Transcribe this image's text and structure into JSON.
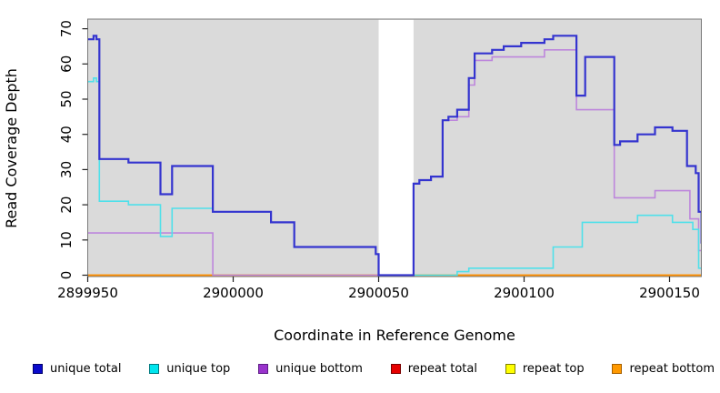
{
  "chart_data": {
    "type": "line",
    "subtype": "step",
    "title": "",
    "xlabel": "Coordinate in Reference Genome",
    "ylabel": "Read Coverage Depth",
    "xlim": [
      2899950,
      2900161
    ],
    "ylim": [
      0,
      73
    ],
    "x_ticks": [
      2899950,
      2900000,
      2900050,
      2900100,
      2900150
    ],
    "y_ticks": [
      0,
      10,
      20,
      30,
      40,
      50,
      60,
      70
    ],
    "grid": false,
    "plot_bg": "#DADADA",
    "gap_region": {
      "from": 2900050,
      "to": 2900062,
      "color": "#FFFFFF"
    },
    "legend_position": "bottom",
    "series": [
      {
        "name": "unique total",
        "line_color": "#3434CF",
        "line_width": 2.2,
        "legend_fill": "#0A0ACC",
        "legend_border": "#00006B",
        "steps": [
          [
            2899950,
            67
          ],
          [
            2899952,
            68
          ],
          [
            2899953,
            67
          ],
          [
            2899954,
            33
          ],
          [
            2899964,
            32
          ],
          [
            2899975,
            23
          ],
          [
            2899979,
            31
          ],
          [
            2899993,
            18
          ],
          [
            2900013,
            15
          ],
          [
            2900021,
            8
          ],
          [
            2900049,
            6
          ],
          [
            2900050,
            0
          ],
          [
            2900062,
            26
          ],
          [
            2900064,
            27
          ],
          [
            2900068,
            28
          ],
          [
            2900072,
            44
          ],
          [
            2900074,
            45
          ],
          [
            2900077,
            47
          ],
          [
            2900081,
            56
          ],
          [
            2900083,
            63
          ],
          [
            2900089,
            64
          ],
          [
            2900093,
            65
          ],
          [
            2900099,
            66
          ],
          [
            2900107,
            67
          ],
          [
            2900110,
            68
          ],
          [
            2900118,
            51
          ],
          [
            2900121,
            62
          ],
          [
            2900131,
            37
          ],
          [
            2900133,
            38
          ],
          [
            2900139,
            40
          ],
          [
            2900145,
            42
          ],
          [
            2900151,
            41
          ],
          [
            2900156,
            31
          ],
          [
            2900159,
            29
          ],
          [
            2900160,
            18
          ],
          [
            2900161,
            9
          ]
        ]
      },
      {
        "name": "unique top",
        "line_color": "#4FE0EA",
        "line_width": 1.6,
        "legend_fill": "#00E5EE",
        "legend_border": "#007A80",
        "steps": [
          [
            2899950,
            55
          ],
          [
            2899952,
            56
          ],
          [
            2899953,
            55
          ],
          [
            2899954,
            21
          ],
          [
            2899964,
            20
          ],
          [
            2899975,
            11
          ],
          [
            2899979,
            19
          ],
          [
            2899993,
            18
          ],
          [
            2900013,
            15
          ],
          [
            2900021,
            8
          ],
          [
            2900049,
            6
          ],
          [
            2900050,
            0
          ],
          [
            2900077,
            1
          ],
          [
            2900081,
            2
          ],
          [
            2900110,
            8
          ],
          [
            2900120,
            15
          ],
          [
            2900139,
            17
          ],
          [
            2900151,
            15
          ],
          [
            2900158,
            13
          ],
          [
            2900160,
            2
          ]
        ]
      },
      {
        "name": "unique bottom",
        "line_color": "#BD86DC",
        "line_width": 1.6,
        "legend_fill": "#9933CC",
        "legend_border": "#5E1E86",
        "steps": [
          [
            2899950,
            12
          ],
          [
            2899993,
            0
          ],
          [
            2900062,
            26
          ],
          [
            2900064,
            27
          ],
          [
            2900068,
            28
          ],
          [
            2900072,
            44
          ],
          [
            2900077,
            45
          ],
          [
            2900081,
            54
          ],
          [
            2900083,
            61
          ],
          [
            2900089,
            62
          ],
          [
            2900107,
            64
          ],
          [
            2900118,
            47
          ],
          [
            2900131,
            22
          ],
          [
            2900145,
            24
          ],
          [
            2900157,
            16
          ],
          [
            2900160,
            7
          ]
        ]
      },
      {
        "name": "repeat total",
        "line_color": "#DC4A4A",
        "line_width": 1.5,
        "legend_fill": "#E60000",
        "legend_border": "#7A0000",
        "steps": [
          [
            2899950,
            0
          ]
        ]
      },
      {
        "name": "repeat top",
        "line_color": "#F0F000",
        "line_width": 1.5,
        "legend_fill": "#FFFF00",
        "legend_border": "#808000",
        "steps": [
          [
            2899950,
            0
          ]
        ]
      },
      {
        "name": "repeat bottom",
        "line_color": "#FF8C00",
        "line_width": 1.8,
        "legend_fill": "#FF9900",
        "legend_border": "#A66000",
        "steps": [
          [
            2899950,
            0
          ]
        ]
      }
    ],
    "draw_order": [
      3,
      4,
      5,
      2,
      1,
      0
    ]
  }
}
